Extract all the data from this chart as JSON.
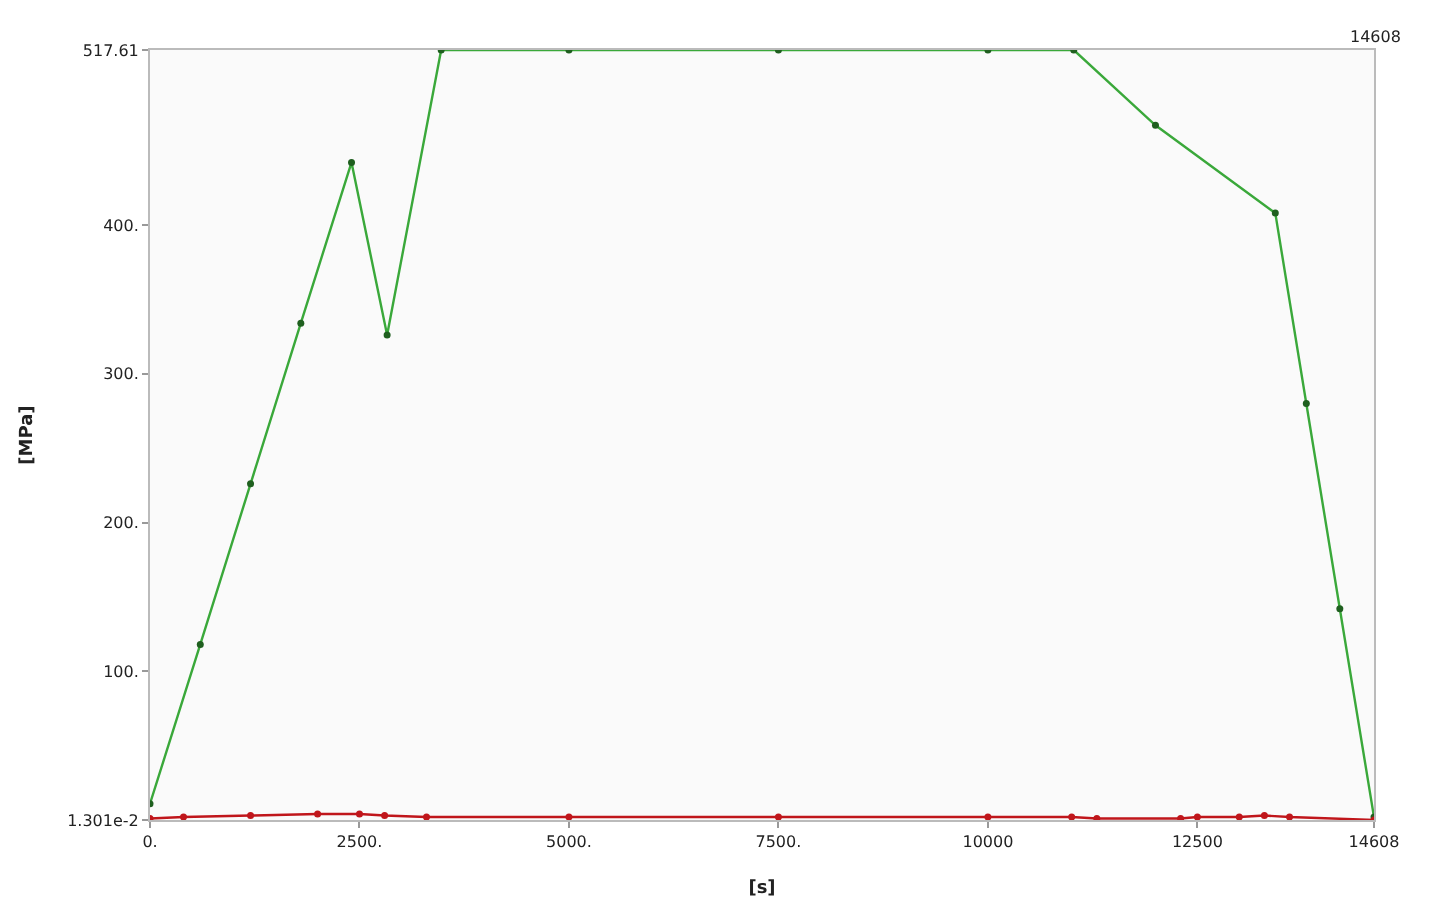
{
  "chart_data": {
    "type": "line",
    "xlabel": "[s]",
    "ylabel": "[MPa]",
    "xlim": [
      0,
      14608
    ],
    "ylim": [
      0.01301,
      517.61
    ],
    "xticks": [
      {
        "value": 0,
        "label": "0."
      },
      {
        "value": 2500,
        "label": "2500."
      },
      {
        "value": 5000,
        "label": "5000."
      },
      {
        "value": 7500,
        "label": "7500."
      },
      {
        "value": 10000,
        "label": "10000"
      },
      {
        "value": 12500,
        "label": "12500"
      },
      {
        "value": 14608,
        "label": "14608"
      }
    ],
    "yticks": [
      {
        "value": 0.01301,
        "label": "1.301e-2"
      },
      {
        "value": 100,
        "label": "100."
      },
      {
        "value": 200,
        "label": "200."
      },
      {
        "value": 300,
        "label": "300."
      },
      {
        "value": 400,
        "label": "400."
      },
      {
        "value": 517.61,
        "label": "517.61"
      }
    ],
    "marker": "circle",
    "annotations": [
      "14608"
    ],
    "series": [
      {
        "color": "#3aa83a",
        "x": [
          0,
          600,
          1200,
          1800,
          2405,
          2830,
          3475,
          5000,
          7500,
          10000,
          11025,
          12000,
          13430,
          13800,
          14200,
          14608
        ],
        "values": [
          11,
          118,
          226,
          334,
          442,
          326,
          517.61,
          517.61,
          517.61,
          517.61,
          517.61,
          467,
          408,
          280,
          142,
          2
        ]
      },
      {
        "color": "#c0161b",
        "x": [
          0,
          400,
          1200,
          2000,
          2500,
          2800,
          3300,
          5000,
          7500,
          10000,
          11000,
          11300,
          12300,
          12500,
          13000,
          13300,
          13600,
          14608
        ],
        "values": [
          1,
          2,
          3,
          4,
          4,
          3,
          2,
          2,
          2,
          2,
          2,
          1,
          1,
          2,
          2,
          3,
          2,
          0.01301
        ]
      }
    ]
  }
}
